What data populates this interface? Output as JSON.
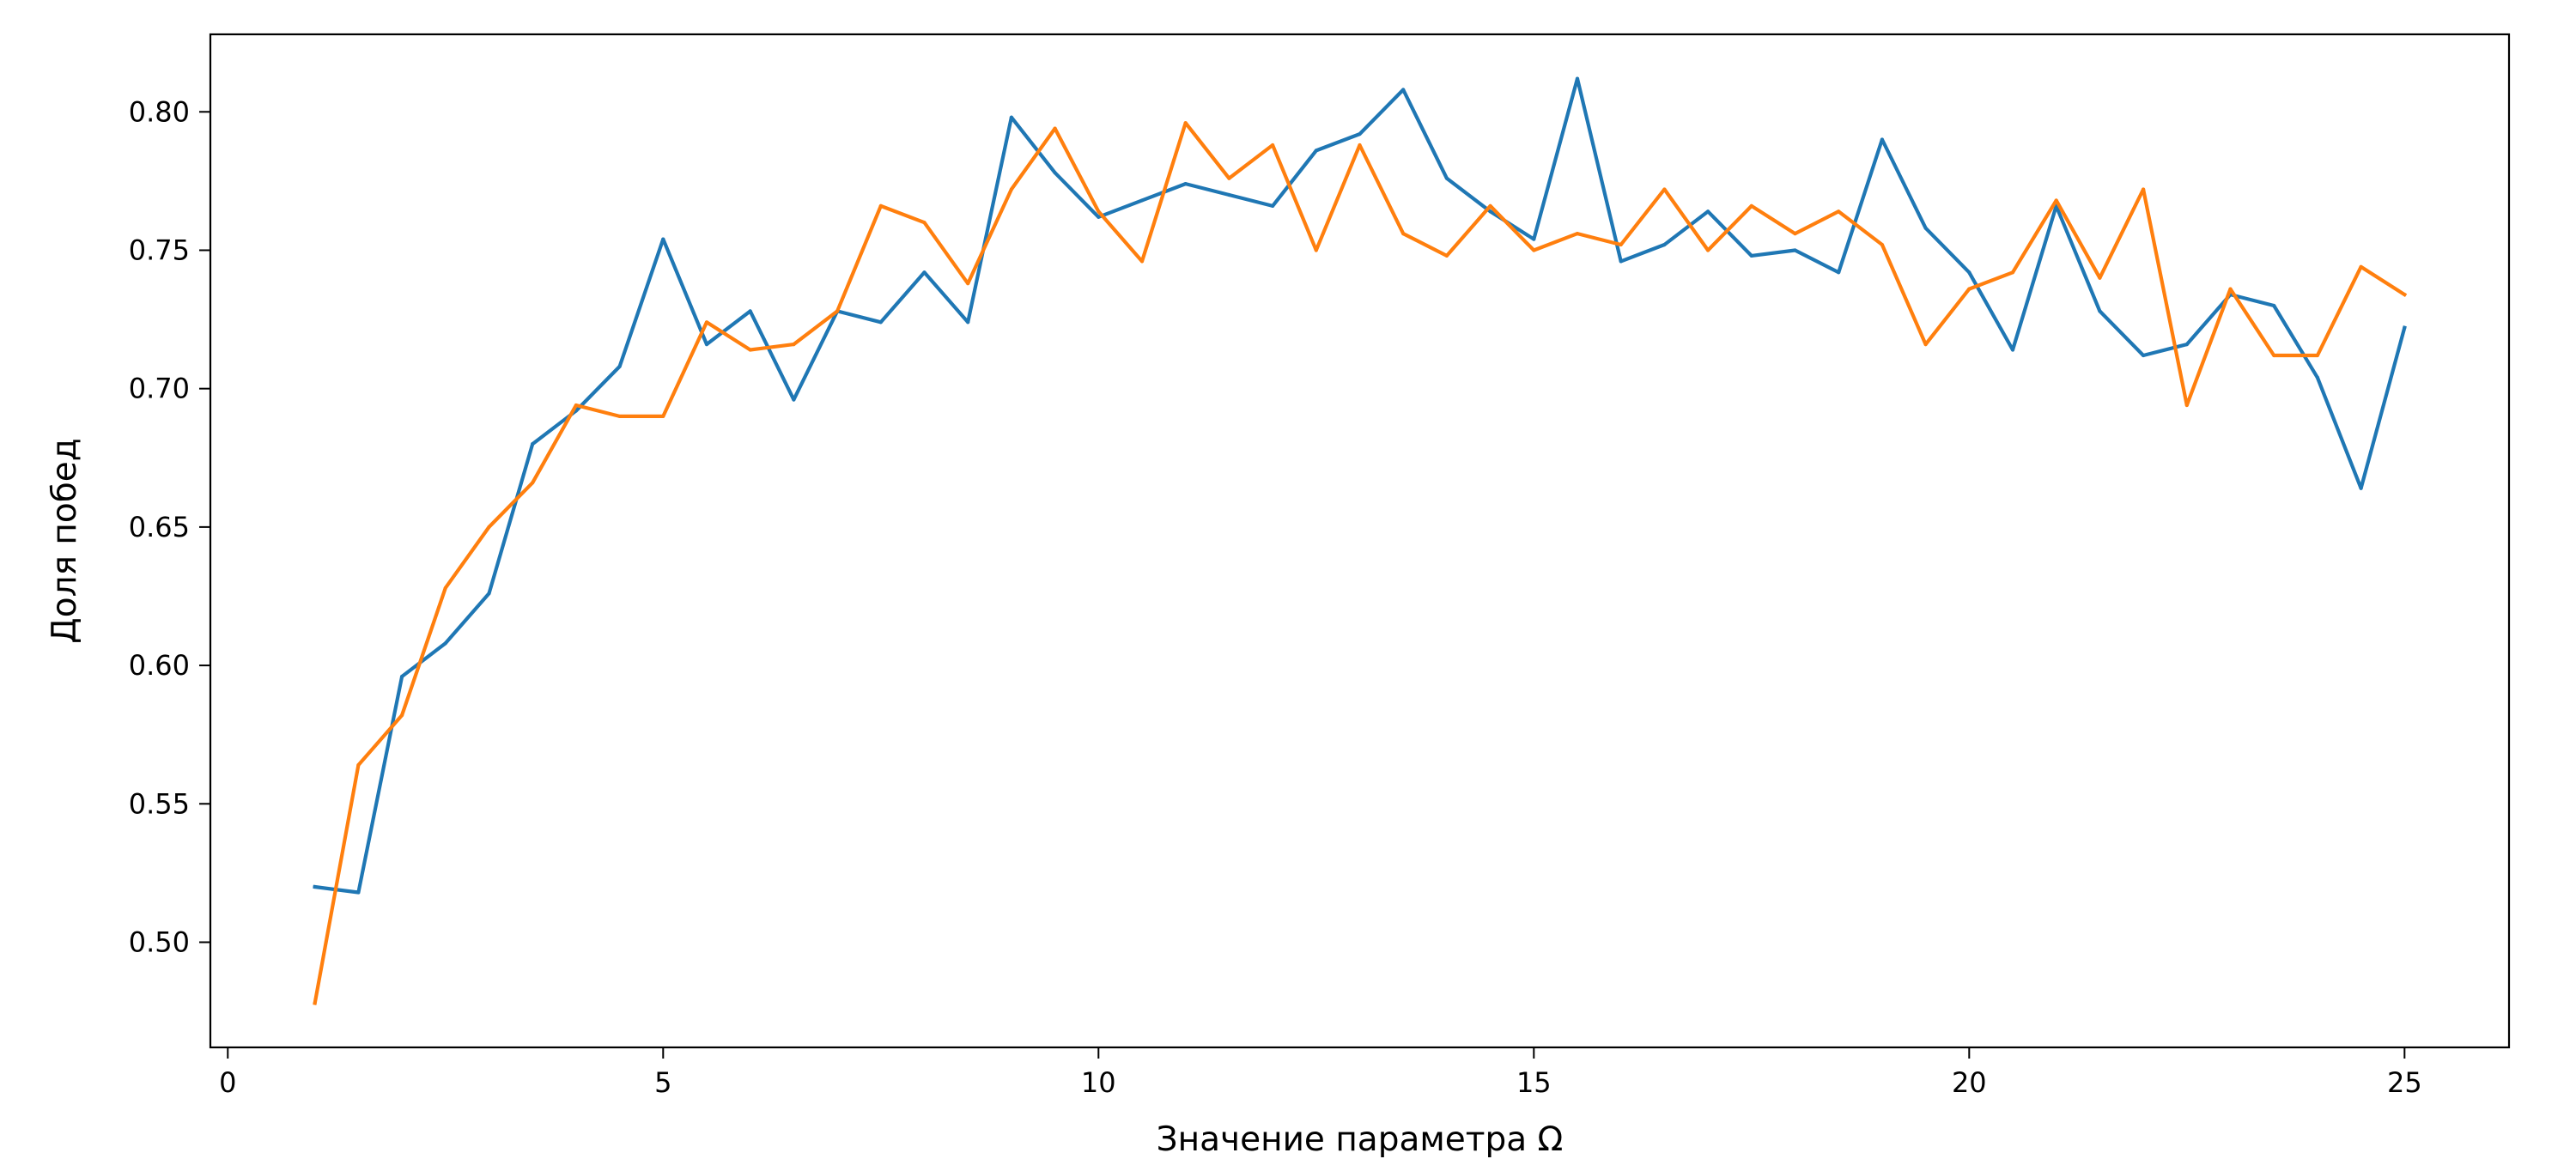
{
  "chart_data": {
    "type": "line",
    "title": "",
    "xlabel": "Значение параметра Ω",
    "ylabel": "Доля побед",
    "xlim": [
      -0.2,
      26.2
    ],
    "ylim": [
      0.462,
      0.828
    ],
    "xticks": [
      0,
      5,
      10,
      15,
      20,
      25
    ],
    "xtick_labels": [
      "0",
      "5",
      "10",
      "15",
      "20",
      "25"
    ],
    "yticks": [
      0.5,
      0.55,
      0.6,
      0.65,
      0.7,
      0.75,
      0.8
    ],
    "ytick_labels": [
      "0.50",
      "0.55",
      "0.60",
      "0.65",
      "0.70",
      "0.75",
      "0.80"
    ],
    "grid": false,
    "x": [
      1,
      1.5,
      2,
      2.5,
      3,
      3.5,
      4,
      4.5,
      5,
      5.5,
      6,
      6.5,
      7,
      7.5,
      8,
      8.5,
      9,
      9.5,
      10,
      10.5,
      11,
      11.5,
      12,
      12.5,
      13,
      13.5,
      14,
      14.5,
      15,
      15.5,
      16,
      16.5,
      17,
      17.5,
      18,
      18.5,
      19,
      19.5,
      20,
      20.5,
      21,
      21.5,
      22,
      22.5,
      23,
      23.5,
      24,
      24.5,
      25
    ],
    "series": [
      {
        "color": "#1f77b4",
        "values": [
          0.52,
          0.518,
          0.596,
          0.608,
          0.626,
          0.68,
          0.692,
          0.708,
          0.754,
          0.716,
          0.728,
          0.696,
          0.728,
          0.724,
          0.742,
          0.724,
          0.798,
          0.778,
          0.762,
          0.768,
          0.774,
          0.77,
          0.766,
          0.786,
          0.792,
          0.808,
          0.776,
          0.764,
          0.754,
          0.812,
          0.746,
          0.752,
          0.764,
          0.748,
          0.75,
          0.742,
          0.79,
          0.758,
          0.742,
          0.714,
          0.766,
          0.728,
          0.712,
          0.716,
          0.734,
          0.73,
          0.704,
          0.664,
          0.722
        ]
      },
      {
        "color": "#ff7f0e",
        "values": [
          0.478,
          0.564,
          0.582,
          0.628,
          0.65,
          0.666,
          0.694,
          0.69,
          0.69,
          0.724,
          0.714,
          0.716,
          0.728,
          0.766,
          0.76,
          0.738,
          0.772,
          0.794,
          0.764,
          0.746,
          0.796,
          0.776,
          0.788,
          0.75,
          0.788,
          0.756,
          0.748,
          0.766,
          0.75,
          0.756,
          0.752,
          0.772,
          0.75,
          0.766,
          0.756,
          0.764,
          0.752,
          0.716,
          0.736,
          0.742,
          0.768,
          0.74,
          0.772,
          0.694,
          0.736,
          0.712,
          0.712,
          0.744,
          0.734
        ]
      }
    ]
  }
}
